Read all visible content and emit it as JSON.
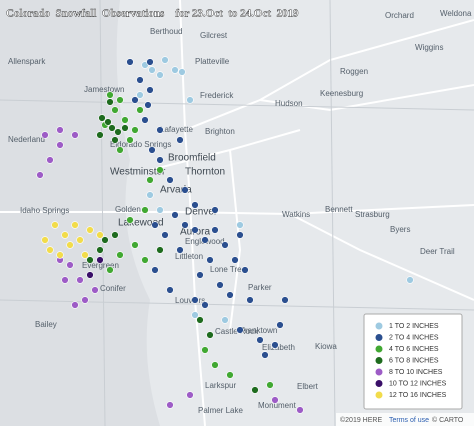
{
  "title": "Colorado  Snowfall  Observations    for 23.Oct  to 24.Oct  2019",
  "places": [
    "Berthoud",
    "Gilcrest",
    "Orchard",
    "Weldona",
    "Allenspark",
    "Platteville",
    "Wiggins",
    "Roggen",
    "Jamestown",
    "Frederick",
    "Keenesburg",
    "Hudson",
    "Lafayette",
    "Brighton",
    "Nederland",
    "Eldorado Springs",
    "Broomfield",
    "Westminster",
    "Thornton",
    "Arvada",
    "Denver",
    "Aurora",
    "Watkins",
    "Bennett",
    "Strasburg",
    "Byers",
    "Idaho Springs",
    "Golden",
    "Lakewood",
    "Englewood",
    "Evergreen",
    "Littleton",
    "Lone Tree",
    "Parker",
    "Conifer",
    "Bailey",
    "Louviers",
    "Castle Rock",
    "Franktown",
    "Elizabeth",
    "Kiowa",
    "Deer Trail",
    "Larkspur",
    "Elbert",
    "Palmer Lake",
    "Monument"
  ],
  "legend": {
    "items": [
      {
        "label": "1 TO 2 INCHES",
        "color": "#9ecae1"
      },
      {
        "label": "2 TO 4 INCHES",
        "color": "#2b4f8f"
      },
      {
        "label": "4 TO 6 INCHES",
        "color": "#41a832"
      },
      {
        "label": "6 TO 8 INCHES",
        "color": "#1e6b1e"
      },
      {
        "label": "8 TO 10 INCHES",
        "color": "#9d5cc6"
      },
      {
        "label": "10 TO 12 INCHES",
        "color": "#3a0f68"
      },
      {
        "label": "12 TO 16 INCHES",
        "color": "#f2dc4b"
      }
    ]
  },
  "attribution": {
    "copyright": "©2019 HERE",
    "terms": "Terms of use",
    "carto": "© CARTO"
  }
}
